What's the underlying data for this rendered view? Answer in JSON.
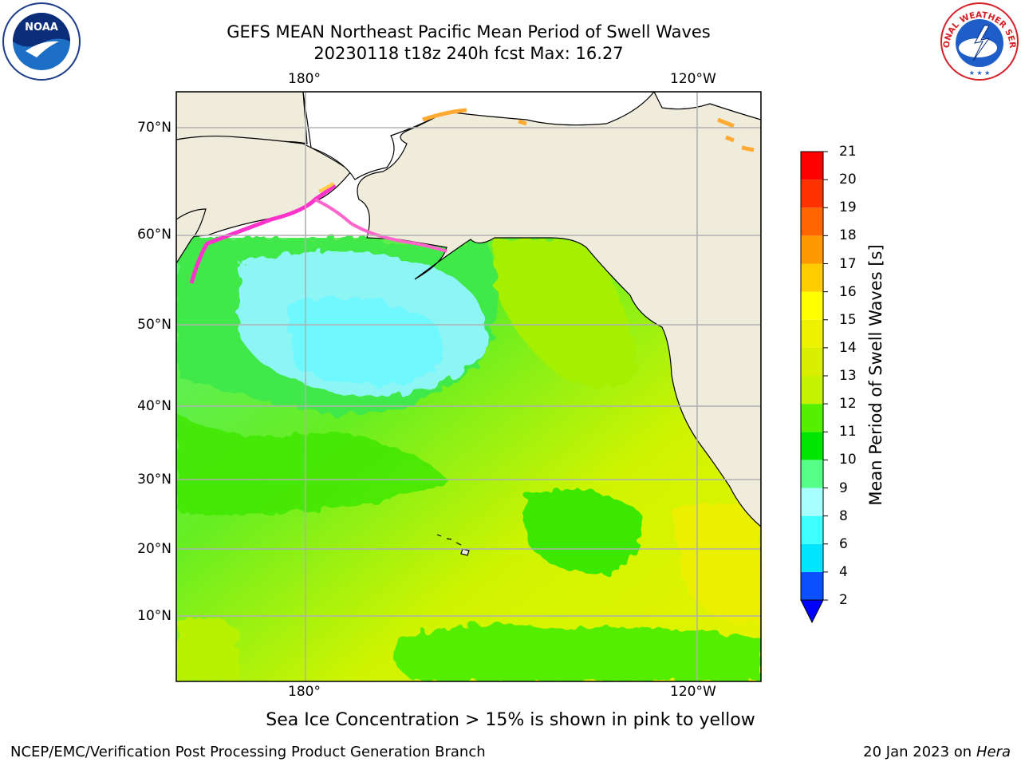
{
  "header": {
    "title_line1": "GEFS MEAN Northeast Pacific Mean Period of Swell Waves",
    "title_line2": "20230118 t18z 240h fcst   Max: 16.27"
  },
  "logos": {
    "left": "NOAA",
    "right_arc": "NATIONAL WEATHER SERVICE"
  },
  "map": {
    "top_lon_ticks": [
      "180°",
      "120°W"
    ],
    "bottom_lon_ticks": [
      "180°",
      "120°W"
    ],
    "lat_ticks": [
      "70°N",
      "60°N",
      "50°N",
      "40°N",
      "30°N",
      "20°N",
      "10°N"
    ],
    "land_color": "#efecdc",
    "grid_color": "#b0b0b0"
  },
  "colorbar": {
    "title": "Mean Period of Swell Waves [s]",
    "levels": [
      "2",
      "4",
      "6",
      "8",
      "9",
      "10",
      "11",
      "12",
      "13",
      "14",
      "15",
      "16",
      "17",
      "18",
      "19",
      "20",
      "21"
    ],
    "colors": [
      "#0a50ff",
      "#00e5ff",
      "#40ffff",
      "#a8ffff",
      "#55ff88",
      "#00e600",
      "#55f000",
      "#c4f200",
      "#d8f000",
      "#ecf200",
      "#ffff00",
      "#ffcc00",
      "#ff9900",
      "#ff6600",
      "#ff3300",
      "#ff0000"
    ],
    "extend_color": "#0000ff"
  },
  "caption": "Sea Ice Concentration > 15% is shown in pink to yellow",
  "footer": {
    "left": "NCEP/EMC/Verification Post Processing Product Generation Branch",
    "right_date": "20 Jan 2023 on",
    "right_host": "Hera"
  }
}
